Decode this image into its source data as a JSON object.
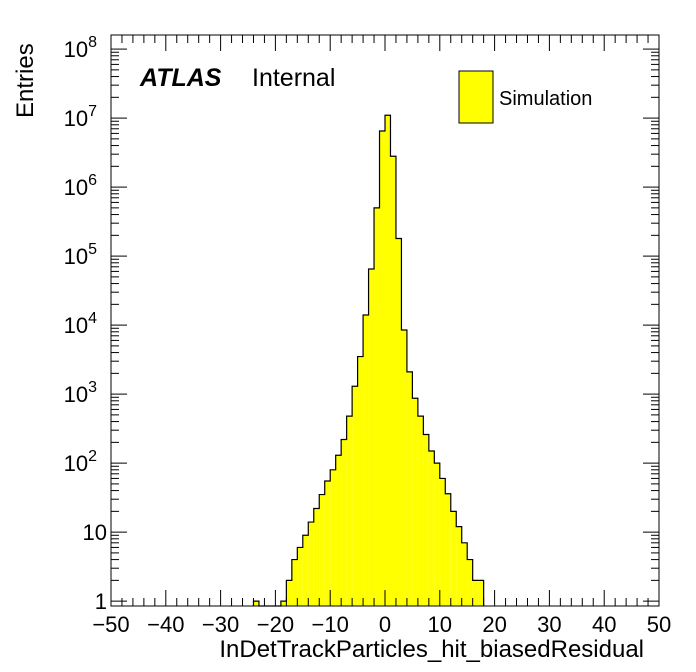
{
  "chart_data": {
    "type": "bar",
    "style": "histogram-step",
    "xlabel": "InDetTrackParticles_hit_biasedResidual",
    "ylabel": "Entries",
    "xlim": [
      -50,
      50
    ],
    "ylim": [
      0.85,
      160000000
    ],
    "yscale": "log",
    "grid": false,
    "legend_placement": "top-right",
    "atlas_label": "ATLAS",
    "atlas_status": "Internal",
    "fill_color": "#ffff00",
    "edge_color": "#000000",
    "bin_width": 1,
    "bin_low_edges": [
      -24,
      -23,
      -22,
      -21,
      -20,
      -19,
      -18,
      -17,
      -16,
      -15,
      -14,
      -13,
      -12,
      -11,
      -10,
      -9,
      -8,
      -7,
      -6,
      -5,
      -4,
      -3,
      -2,
      -1,
      0,
      1,
      2,
      3,
      4,
      5,
      6,
      7,
      8,
      9,
      10,
      11,
      12,
      13,
      14,
      15,
      16,
      17
    ],
    "series": [
      {
        "name": "Simulation",
        "values": [
          1,
          0,
          0,
          0,
          0,
          1,
          2,
          4,
          6,
          9,
          14,
          22,
          35,
          55,
          80,
          130,
          220,
          480,
          1300,
          3500,
          14000,
          65000,
          500000,
          6500000,
          11000000,
          2800000,
          180000,
          8500,
          2100,
          870,
          480,
          260,
          150,
          100,
          60,
          36,
          20,
          12,
          7,
          4,
          2,
          2
        ]
      }
    ],
    "x_ticks": [
      "−50",
      "−40",
      "−30",
      "−20",
      "−10",
      "0",
      "10",
      "20",
      "30",
      "40",
      "50"
    ],
    "y_ticks": [
      "1",
      "10",
      "10^2",
      "10^3",
      "10^4",
      "10^5",
      "10^6",
      "10^7",
      "10^8"
    ]
  }
}
